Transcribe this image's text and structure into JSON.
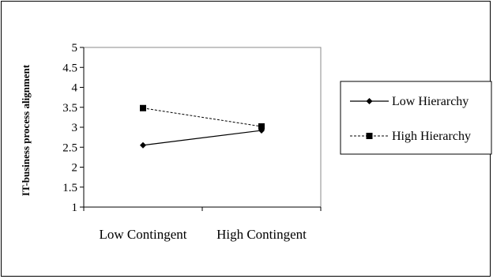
{
  "chart_data": {
    "type": "line",
    "title": "",
    "xlabel": "",
    "ylabel": "IT-business process alignment",
    "categories": [
      "Low Contingent",
      "High Contingent"
    ],
    "ylim": [
      1,
      5
    ],
    "yticks": [
      1,
      1.5,
      2,
      2.5,
      3,
      3.5,
      4,
      4.5,
      5
    ],
    "ytick_labels": [
      "1",
      "1.5",
      "2",
      "2.5",
      "3",
      "3.5",
      "4",
      "4.5",
      "5"
    ],
    "grid": false,
    "legend_position": "right",
    "series": [
      {
        "name": "Low Hierarchy",
        "values": [
          2.55,
          2.92
        ],
        "marker": "diamond",
        "line": "solid",
        "color": "#000000"
      },
      {
        "name": "High Hierarchy",
        "values": [
          3.48,
          3.02
        ],
        "marker": "square",
        "line": "dashed",
        "color": "#000000"
      }
    ]
  }
}
